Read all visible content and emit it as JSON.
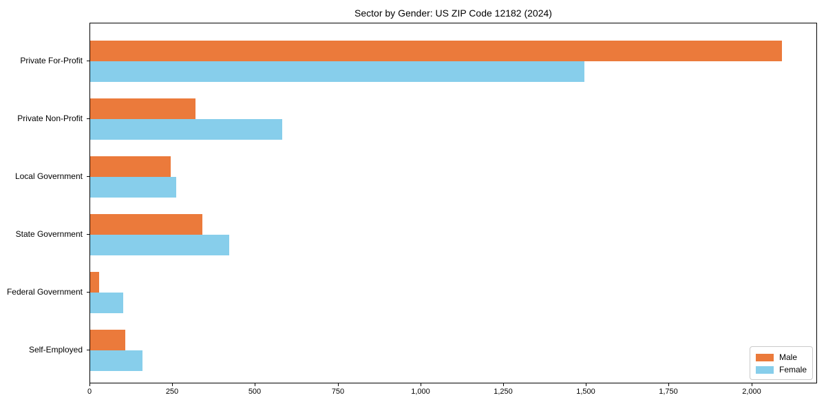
{
  "chart_data": {
    "type": "bar",
    "orientation": "horizontal",
    "title": "Sector by Gender: US ZIP Code 12182 (2024)",
    "categories": [
      "Private For-Profit",
      "Private Non-Profit",
      "Local Government",
      "State Government",
      "Federal Government",
      "Self-Employed"
    ],
    "series": [
      {
        "name": "Male",
        "color": "#EB7A3B",
        "values": [
          2089,
          318,
          244,
          340,
          26,
          106
        ]
      },
      {
        "name": "Female",
        "color": "#87CEEB",
        "values": [
          1493,
          581,
          260,
          420,
          100,
          158
        ]
      }
    ],
    "xlabel": "",
    "ylabel": "",
    "xlim": [
      0,
      2194
    ],
    "xticks": [
      0,
      250,
      500,
      750,
      1000,
      1250,
      1500,
      1750,
      2000
    ],
    "xtick_labels": [
      "0",
      "250",
      "500",
      "750",
      "1,000",
      "1,250",
      "1,500",
      "1,750",
      "2,000"
    ],
    "grid": false,
    "legend": {
      "position": "lower right",
      "entries": [
        "Male",
        "Female"
      ]
    }
  }
}
